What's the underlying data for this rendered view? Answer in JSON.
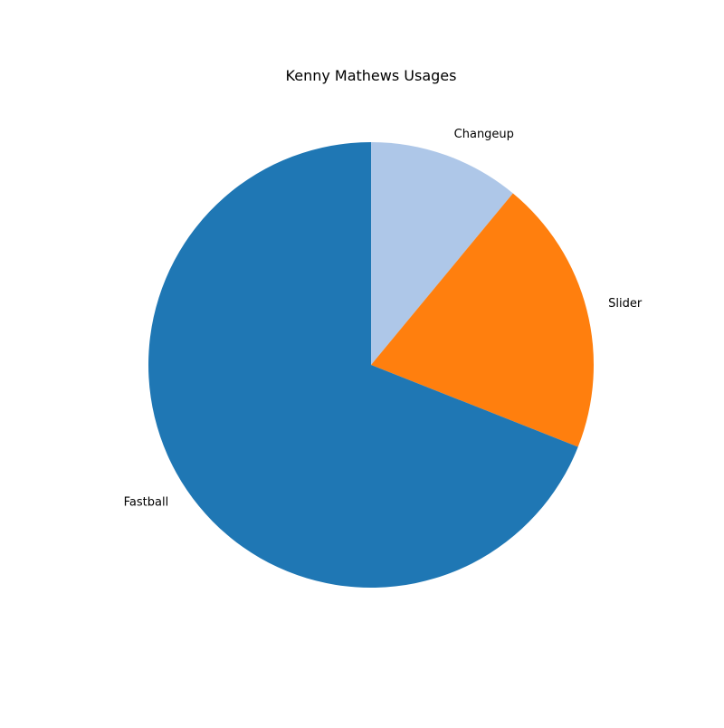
{
  "chart_data": {
    "type": "pie",
    "title": "Kenny Mathews Usages",
    "categories": [
      "Changeup",
      "Slider",
      "Fastball"
    ],
    "values": [
      11,
      20,
      69
    ],
    "colors": [
      "#aec7e8",
      "#ff7f0e",
      "#1f77b4"
    ],
    "start_angle": "top, clockwise",
    "legend": "none"
  }
}
